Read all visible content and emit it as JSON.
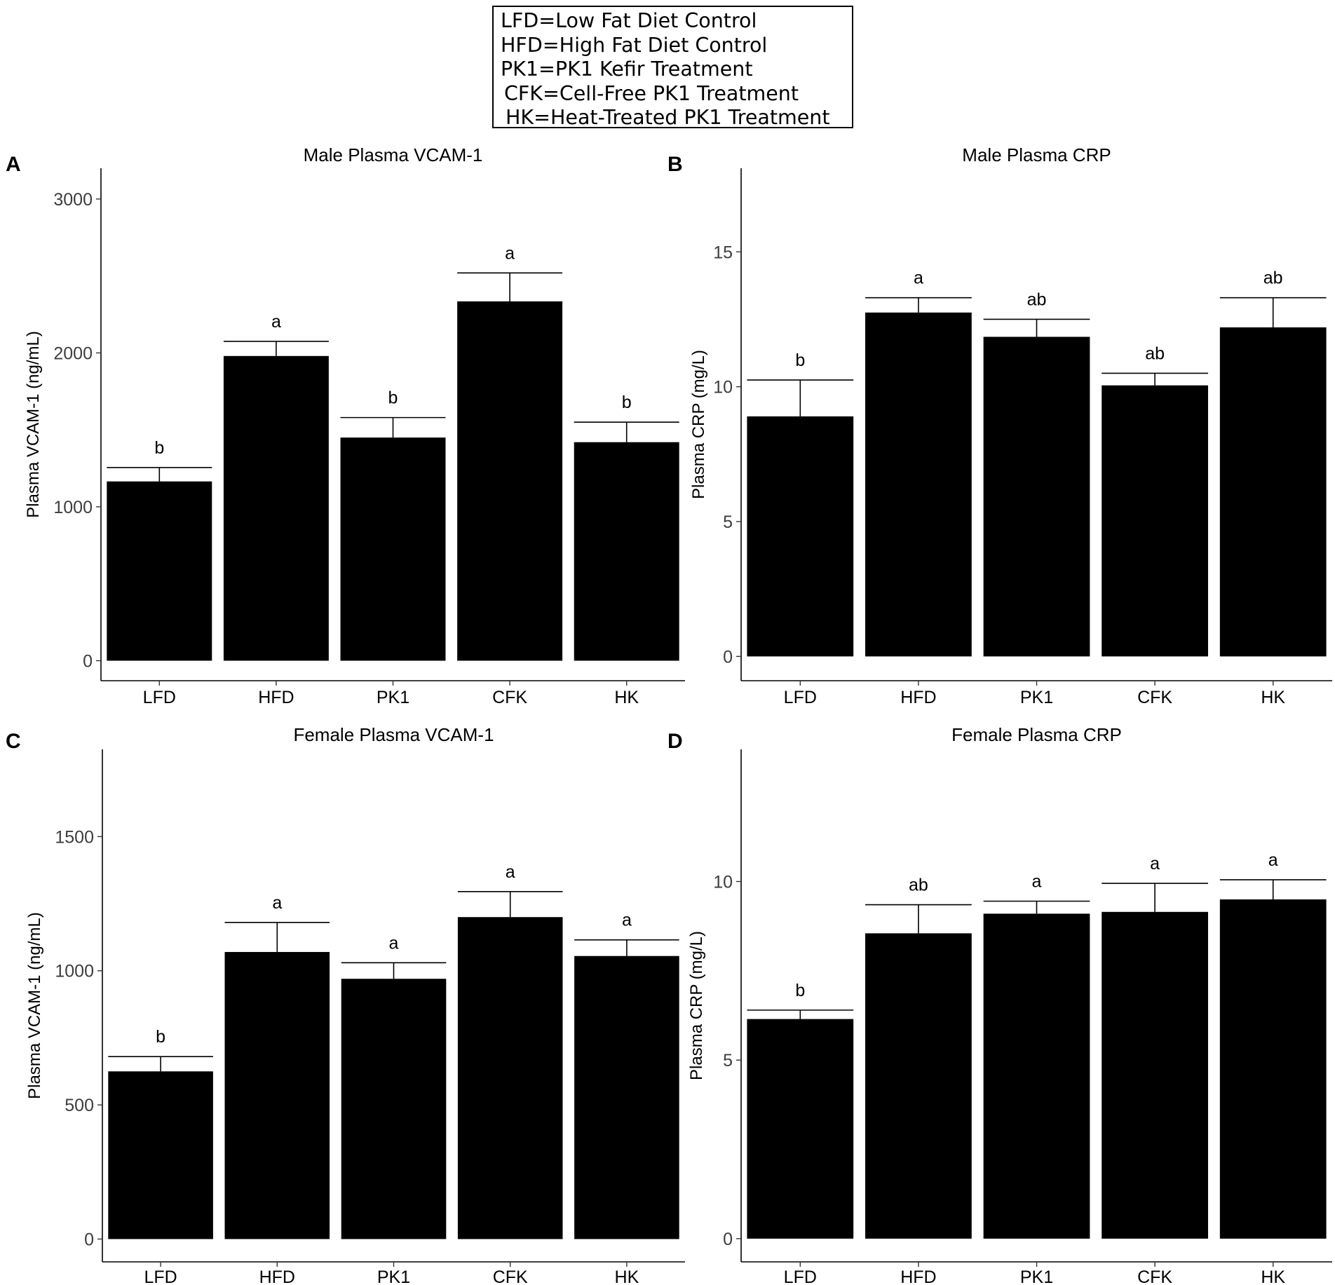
{
  "legend": {
    "items": [
      "LFD=Low Fat Diet Control",
      "HFD=High Fat Diet Control",
      "PK1=PK1 Kefir Treatment",
      "CFK=Cell-Free PK1 Treatment",
      "HK=Heat-Treated PK1 Treatment"
    ]
  },
  "colors": {
    "bar": "#000000",
    "axis": "#000000",
    "tick_label": "#3d3d3d"
  },
  "chart_data": [
    {
      "panel": "A",
      "type": "bar",
      "title": "Male Plasma VCAM-1",
      "xlabel": "",
      "ylabel": "Plasma VCAM-1 (ng/mL)",
      "categories": [
        "LFD",
        "HFD",
        "PK1",
        "CFK",
        "HK"
      ],
      "values": [
        1165,
        1980,
        1450,
        2335,
        1420
      ],
      "errors": [
        90,
        95,
        130,
        185,
        130
      ],
      "significance": [
        "b",
        "a",
        "b",
        "a",
        "b"
      ],
      "yticks": [
        0,
        1000,
        2000,
        3000
      ],
      "ylim": [
        -130,
        3200
      ]
    },
    {
      "panel": "B",
      "type": "bar",
      "title": "Male Plasma CRP",
      "xlabel": "",
      "ylabel": "Plasma CRP (mg/L)",
      "categories": [
        "LFD",
        "HFD",
        "PK1",
        "CFK",
        "HK"
      ],
      "values": [
        8.9,
        12.75,
        11.85,
        10.05,
        12.2
      ],
      "errors": [
        1.35,
        0.55,
        0.65,
        0.45,
        1.1
      ],
      "significance": [
        "b",
        "a",
        "ab",
        "ab",
        "ab"
      ],
      "yticks": [
        0,
        5,
        10,
        15
      ],
      "ylim": [
        -0.9,
        18.1
      ]
    },
    {
      "panel": "C",
      "type": "bar",
      "title": "Female  Plasma VCAM-1",
      "xlabel": "",
      "ylabel": "Plasma VCAM-1 (ng/mL)",
      "categories": [
        "LFD",
        "HFD",
        "PK1",
        "CFK",
        "HK"
      ],
      "values": [
        625,
        1070,
        970,
        1200,
        1055
      ],
      "errors": [
        55,
        110,
        60,
        95,
        60
      ],
      "significance": [
        "b",
        "a",
        "a",
        "a",
        "a"
      ],
      "yticks": [
        0,
        500,
        1000,
        1500
      ],
      "ylim": [
        -85,
        1825
      ]
    },
    {
      "panel": "D",
      "type": "bar",
      "title": "Female Plasma CRP",
      "xlabel": "",
      "ylabel": "Plasma CRP (mg/L)",
      "categories": [
        "LFD",
        "HFD",
        "PK1",
        "CFK",
        "HK"
      ],
      "values": [
        6.15,
        8.55,
        9.1,
        9.15,
        9.5
      ],
      "errors": [
        0.25,
        0.8,
        0.35,
        0.8,
        0.55
      ],
      "significance": [
        "b",
        "ab",
        "a",
        "a",
        "a"
      ],
      "yticks": [
        0,
        5,
        10
      ],
      "ylim": [
        -0.65,
        13.7
      ]
    }
  ]
}
